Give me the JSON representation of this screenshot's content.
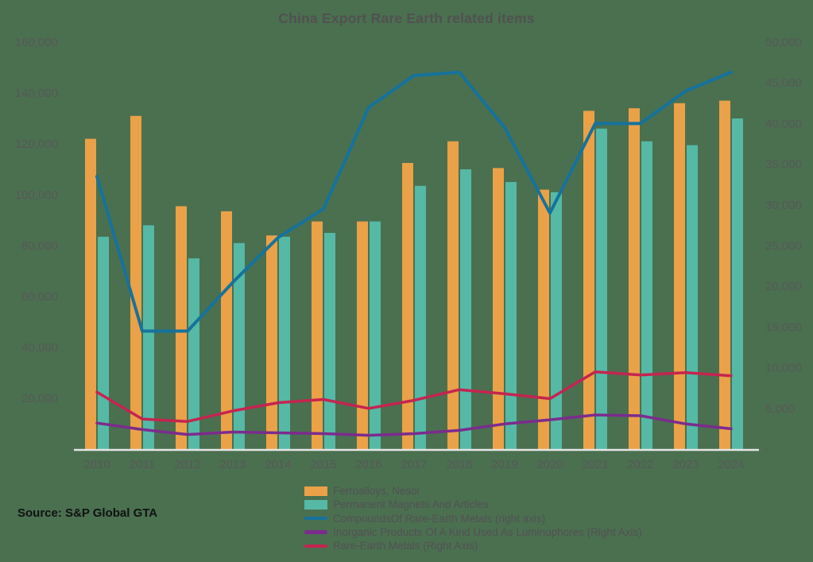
{
  "title": "China Export Rare Earth related items",
  "source_note": "Source: S&P Global GTA",
  "chart_data": {
    "type": "bar+line combo",
    "title": "China Export Rare Earth related items",
    "categories": [
      "2010",
      "2011",
      "2012",
      "2013",
      "2014",
      "2015",
      "2016",
      "2017",
      "2018",
      "2019",
      "2020",
      "2021",
      "2022",
      "2023",
      "2024"
    ],
    "series": [
      {
        "name": "Ferroalloys, Nesoi",
        "type": "bar",
        "axis": "left",
        "color": "#eba147",
        "values": [
          122000,
          131000,
          95500,
          93500,
          84000,
          89500,
          89500,
          112500,
          121000,
          110500,
          102000,
          133000,
          134000,
          136000,
          137000
        ]
      },
      {
        "name": "Permanent Magnets And Articles",
        "type": "bar",
        "axis": "left",
        "color": "#55b9a6",
        "values": [
          83500,
          88000,
          75000,
          81000,
          83500,
          85000,
          89500,
          103500,
          110000,
          105000,
          101000,
          126000,
          121000,
          119500,
          130000
        ]
      },
      {
        "name": "CompoundsOf Rare-Earth Metals (right axis)",
        "type": "line",
        "axis": "right",
        "color": "#16729c",
        "values": [
          33500,
          14500,
          14500,
          20500,
          26000,
          29500,
          42000,
          45900,
          46300,
          39500,
          29000,
          40000,
          40000,
          44000,
          46300
        ]
      },
      {
        "name": "Inorganic Products Of A Kind Used As Luminophores (Right Axis)",
        "type": "line",
        "axis": "right",
        "color": "#7c2b8d",
        "values": [
          3200,
          2400,
          1800,
          2100,
          2000,
          1900,
          1700,
          1900,
          2300,
          3100,
          3600,
          4200,
          4100,
          3100,
          2500
        ]
      },
      {
        "name": "Rare-Earth Metals (Right Axis)",
        "type": "line",
        "axis": "right",
        "color": "#c52450",
        "values": [
          7000,
          3700,
          3400,
          4700,
          5700,
          6100,
          5000,
          6000,
          7300,
          6800,
          6200,
          9500,
          9100,
          9400,
          9000
        ]
      }
    ],
    "left_axis": {
      "min": 0,
      "max": 160000,
      "step": 20000,
      "tick_labels": [
        "-",
        "20,000",
        "40,000",
        "60,000",
        "80,000",
        "100,000",
        "120,000",
        "140,000",
        "160,000"
      ]
    },
    "right_axis": {
      "min": 0,
      "max": 50000,
      "step": 5000,
      "tick_labels": [
        "-",
        "5,000",
        "10,000",
        "15,000",
        "20,000",
        "25,000",
        "30,000",
        "35,000",
        "40,000",
        "45,000",
        "50,000"
      ]
    },
    "legend_position": "bottom",
    "grid": false,
    "background_color": "#4a7050",
    "axis_line_color": "#e5e5e5",
    "text_color": "#585858"
  }
}
